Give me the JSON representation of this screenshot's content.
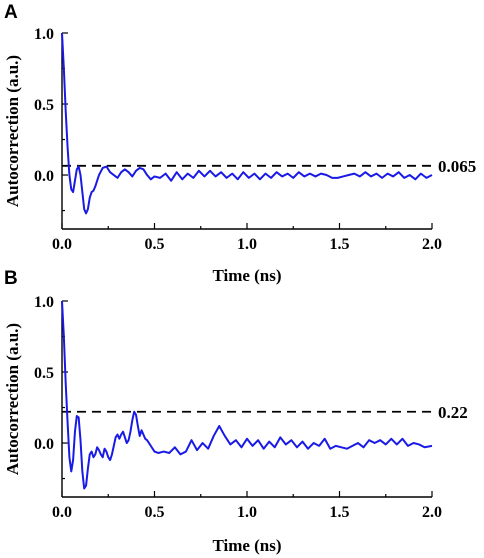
{
  "chart_data": [
    {
      "type": "line",
      "panel_label": "A",
      "xlabel": "Time (ns)",
      "ylabel": "Autocorrection (a.u.)",
      "xlim": [
        0,
        2.0
      ],
      "ylim": [
        -0.38,
        1.0
      ],
      "xticks": [
        0.0,
        0.5,
        1.0,
        1.5,
        2.0
      ],
      "xtick_labels": [
        "0.0",
        "0.5",
        "1.0",
        "1.5",
        "2.0"
      ],
      "yticks": [
        0.0,
        0.5,
        1.0
      ],
      "ytick_labels": [
        "0.0",
        "0.5",
        "1.0"
      ],
      "reference_line": {
        "value": 0.065,
        "label": "0.065",
        "style": "dashed"
      },
      "series_color": "#1a1ae6",
      "series": [
        {
          "x": [
            0.0,
            0.01,
            0.02,
            0.03,
            0.04,
            0.05,
            0.06,
            0.07,
            0.08,
            0.09,
            0.1,
            0.11,
            0.12,
            0.13,
            0.14,
            0.15,
            0.16,
            0.17,
            0.18,
            0.19,
            0.2,
            0.22,
            0.24,
            0.26,
            0.28,
            0.3,
            0.32,
            0.34,
            0.36,
            0.38,
            0.4,
            0.42,
            0.44,
            0.46,
            0.48,
            0.5,
            0.53,
            0.56,
            0.59,
            0.62,
            0.65,
            0.68,
            0.71,
            0.74,
            0.77,
            0.8,
            0.83,
            0.86,
            0.89,
            0.92,
            0.95,
            0.98,
            1.01,
            1.04,
            1.07,
            1.1,
            1.13,
            1.16,
            1.19,
            1.22,
            1.25,
            1.28,
            1.31,
            1.34,
            1.37,
            1.4,
            1.43,
            1.46,
            1.49,
            1.52,
            1.55,
            1.58,
            1.61,
            1.64,
            1.67,
            1.7,
            1.73,
            1.76,
            1.79,
            1.82,
            1.85,
            1.88,
            1.91,
            1.94,
            1.97,
            2.0
          ],
          "y": [
            1.0,
            0.75,
            0.45,
            0.2,
            0.0,
            -0.1,
            -0.12,
            -0.04,
            0.04,
            0.06,
            0.0,
            -0.12,
            -0.24,
            -0.27,
            -0.24,
            -0.16,
            -0.12,
            -0.11,
            -0.08,
            -0.04,
            0.0,
            0.05,
            0.06,
            0.02,
            0.0,
            -0.02,
            0.02,
            0.04,
            0.02,
            -0.01,
            0.03,
            0.05,
            0.04,
            0.0,
            -0.03,
            -0.01,
            -0.02,
            0.01,
            -0.04,
            0.02,
            -0.03,
            0.01,
            -0.02,
            0.03,
            -0.01,
            0.03,
            -0.01,
            0.02,
            -0.02,
            0.01,
            -0.03,
            0.02,
            -0.02,
            0.01,
            -0.03,
            0.01,
            -0.02,
            0.02,
            -0.01,
            0.01,
            -0.02,
            0.02,
            -0.01,
            0.01,
            -0.01,
            0.01,
            0.0,
            -0.02,
            -0.02,
            -0.01,
            0.0,
            0.01,
            -0.01,
            0.02,
            -0.01,
            0.01,
            -0.02,
            0.01,
            -0.01,
            0.02,
            -0.02,
            0.0,
            -0.03,
            0.01,
            -0.02,
            0.0
          ]
        }
      ]
    },
    {
      "type": "line",
      "panel_label": "B",
      "xlabel": "Time (ns)",
      "ylabel": "Autocorrection (a.u.)",
      "xlim": [
        0,
        2.0
      ],
      "ylim": [
        -0.38,
        1.0
      ],
      "xticks": [
        0.0,
        0.5,
        1.0,
        1.5,
        2.0
      ],
      "xtick_labels": [
        "0.0",
        "0.5",
        "1.0",
        "1.5",
        "2.0"
      ],
      "yticks": [
        0.0,
        0.5,
        1.0
      ],
      "ytick_labels": [
        "0.0",
        "0.5",
        "1.0"
      ],
      "reference_line": {
        "value": 0.22,
        "label": "0.22",
        "style": "dashed"
      },
      "series_color": "#1a1ae6",
      "series": [
        {
          "x": [
            0.0,
            0.01,
            0.02,
            0.03,
            0.04,
            0.05,
            0.06,
            0.07,
            0.08,
            0.09,
            0.1,
            0.11,
            0.12,
            0.13,
            0.14,
            0.15,
            0.16,
            0.17,
            0.18,
            0.19,
            0.2,
            0.21,
            0.22,
            0.23,
            0.24,
            0.25,
            0.26,
            0.27,
            0.28,
            0.29,
            0.3,
            0.31,
            0.32,
            0.33,
            0.34,
            0.35,
            0.36,
            0.37,
            0.38,
            0.39,
            0.4,
            0.41,
            0.42,
            0.43,
            0.44,
            0.45,
            0.46,
            0.48,
            0.5,
            0.52,
            0.55,
            0.58,
            0.61,
            0.64,
            0.67,
            0.7,
            0.73,
            0.76,
            0.79,
            0.82,
            0.85,
            0.88,
            0.91,
            0.94,
            0.97,
            1.0,
            1.03,
            1.06,
            1.09,
            1.12,
            1.15,
            1.18,
            1.21,
            1.24,
            1.27,
            1.3,
            1.33,
            1.36,
            1.39,
            1.42,
            1.45,
            1.48,
            1.51,
            1.54,
            1.57,
            1.6,
            1.63,
            1.66,
            1.69,
            1.72,
            1.75,
            1.78,
            1.81,
            1.84,
            1.87,
            1.9,
            1.93,
            1.96,
            2.0
          ],
          "y": [
            1.0,
            0.75,
            0.42,
            0.15,
            -0.1,
            -0.2,
            -0.12,
            0.08,
            0.19,
            0.18,
            0.02,
            -0.2,
            -0.32,
            -0.3,
            -0.18,
            -0.08,
            -0.06,
            -0.1,
            -0.08,
            -0.03,
            -0.05,
            -0.08,
            -0.1,
            -0.04,
            -0.06,
            -0.1,
            -0.12,
            -0.08,
            -0.02,
            0.04,
            0.06,
            0.03,
            0.06,
            0.08,
            0.04,
            0.0,
            0.02,
            0.08,
            0.16,
            0.22,
            0.2,
            0.12,
            0.05,
            0.09,
            0.06,
            0.03,
            0.02,
            -0.02,
            -0.06,
            -0.07,
            -0.06,
            -0.07,
            -0.03,
            -0.08,
            -0.06,
            0.02,
            -0.05,
            0.0,
            -0.04,
            0.05,
            0.12,
            0.05,
            -0.01,
            0.02,
            -0.03,
            0.03,
            -0.02,
            0.02,
            -0.04,
            0.01,
            -0.03,
            0.04,
            -0.01,
            0.02,
            -0.03,
            0.01,
            -0.04,
            0.0,
            -0.02,
            0.03,
            -0.04,
            -0.02,
            -0.03,
            -0.04,
            -0.02,
            0.0,
            -0.03,
            0.02,
            0.0,
            0.02,
            -0.01,
            0.03,
            -0.01,
            0.03,
            -0.02,
            0.0,
            -0.01,
            -0.03,
            -0.02
          ]
        }
      ]
    }
  ]
}
